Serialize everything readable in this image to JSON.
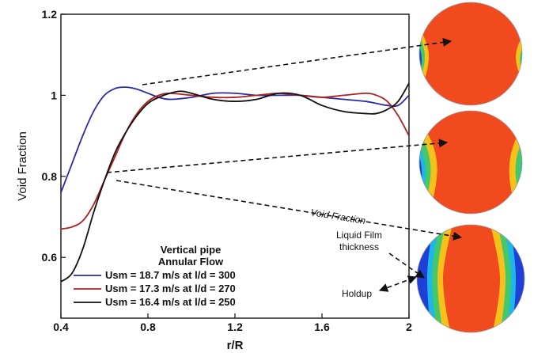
{
  "chart_data": {
    "type": "line",
    "title": "",
    "xlabel": "r/R",
    "ylabel": "Void Fraction",
    "xlim": [
      0.4,
      2.0
    ],
    "ylim": [
      0.45,
      1.2
    ],
    "x_ticks": [
      "0.4",
      "0.8",
      "1.2",
      "1.6",
      "2"
    ],
    "y_ticks": [
      "0.6",
      "0.8",
      "1",
      "1.2"
    ],
    "legend_title_lines": [
      "Vertical pipe",
      "Annular Flow"
    ],
    "legend_position": "bottom-left",
    "series": [
      {
        "name": "Usm = 18.7 m/s at l/d = 300",
        "color": "#2a2aa8",
        "points": [
          [
            0.4,
            0.76
          ],
          [
            0.45,
            0.83
          ],
          [
            0.5,
            0.9
          ],
          [
            0.55,
            0.96
          ],
          [
            0.6,
            1.0
          ],
          [
            0.65,
            1.017
          ],
          [
            0.7,
            1.02
          ],
          [
            0.75,
            1.015
          ],
          [
            0.8,
            1.005
          ],
          [
            0.85,
            0.995
          ],
          [
            0.9,
            0.99
          ],
          [
            1.0,
            0.995
          ],
          [
            1.1,
            1.005
          ],
          [
            1.2,
            1.005
          ],
          [
            1.3,
            1.0
          ],
          [
            1.4,
            1.0
          ],
          [
            1.5,
            1.0
          ],
          [
            1.6,
            0.995
          ],
          [
            1.7,
            0.99
          ],
          [
            1.8,
            0.985
          ],
          [
            1.85,
            0.98
          ],
          [
            1.9,
            0.975
          ],
          [
            1.95,
            0.975
          ],
          [
            2.0,
            1.0
          ]
        ]
      },
      {
        "name": "Usm = 17.3 m/s at l/d = 270",
        "color": "#b02020",
        "points": [
          [
            0.4,
            0.67
          ],
          [
            0.45,
            0.675
          ],
          [
            0.5,
            0.69
          ],
          [
            0.55,
            0.73
          ],
          [
            0.6,
            0.79
          ],
          [
            0.65,
            0.85
          ],
          [
            0.7,
            0.91
          ],
          [
            0.75,
            0.955
          ],
          [
            0.8,
            0.985
          ],
          [
            0.85,
            1.0
          ],
          [
            0.9,
            1.005
          ],
          [
            1.0,
            1.0
          ],
          [
            1.1,
            0.995
          ],
          [
            1.2,
            0.995
          ],
          [
            1.3,
            1.0
          ],
          [
            1.4,
            1.005
          ],
          [
            1.5,
            1.0
          ],
          [
            1.6,
            0.995
          ],
          [
            1.7,
            1.0
          ],
          [
            1.8,
            1.005
          ],
          [
            1.85,
            1.0
          ],
          [
            1.9,
            0.985
          ],
          [
            1.95,
            0.95
          ],
          [
            2.0,
            0.9
          ]
        ]
      },
      {
        "name": "Usm = 16.4 m/s at l/d = 250",
        "color": "#111111",
        "points": [
          [
            0.4,
            0.54
          ],
          [
            0.45,
            0.56
          ],
          [
            0.5,
            0.62
          ],
          [
            0.55,
            0.71
          ],
          [
            0.6,
            0.79
          ],
          [
            0.65,
            0.86
          ],
          [
            0.7,
            0.91
          ],
          [
            0.75,
            0.95
          ],
          [
            0.8,
            0.98
          ],
          [
            0.85,
            0.995
          ],
          [
            0.9,
            1.005
          ],
          [
            0.95,
            1.01
          ],
          [
            1.0,
            1.005
          ],
          [
            1.1,
            0.99
          ],
          [
            1.2,
            0.985
          ],
          [
            1.3,
            0.99
          ],
          [
            1.4,
            1.005
          ],
          [
            1.5,
            1.0
          ],
          [
            1.6,
            0.975
          ],
          [
            1.7,
            0.96
          ],
          [
            1.8,
            0.955
          ],
          [
            1.85,
            0.955
          ],
          [
            1.9,
            0.965
          ],
          [
            1.95,
            0.985
          ],
          [
            2.0,
            1.03
          ]
        ]
      }
    ]
  },
  "annotations": {
    "void_fraction": "Void Fraction",
    "liquid_film": [
      "Liquid Film",
      "thickness"
    ],
    "holdup": "Holdup"
  },
  "colors": {
    "gas_core": "#f24a1f",
    "interface": "#f6c21a",
    "film_green": "#44c86a",
    "film_cyan": "#1fb6e8",
    "film_blue": "#1e3fd8"
  }
}
